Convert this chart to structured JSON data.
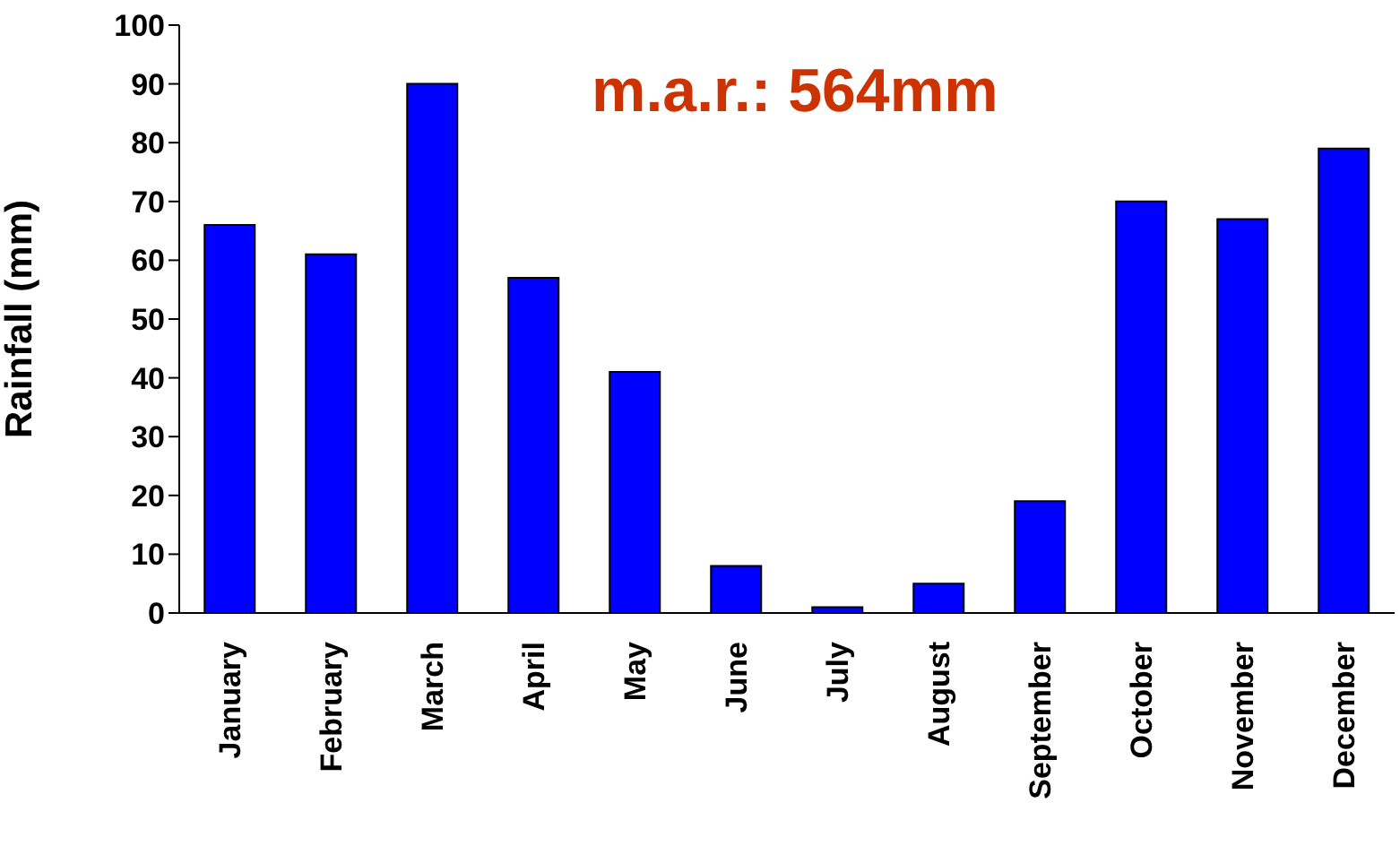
{
  "chart_data": {
    "type": "bar",
    "ylabel": "Rainfall (mm)",
    "categories": [
      "January",
      "February",
      "March",
      "April",
      "May",
      "June",
      "July",
      "August",
      "September",
      "October",
      "November",
      "December"
    ],
    "values": [
      66,
      61,
      90,
      57,
      41,
      8,
      1,
      5,
      19,
      70,
      67,
      79
    ],
    "color": "#0000ff",
    "ylim": [
      0,
      100
    ],
    "yticks": [
      0,
      10,
      20,
      30,
      40,
      50,
      60,
      70,
      80,
      90,
      100
    ],
    "grid": false,
    "legend": false,
    "annotations": [
      "m.a.r.: 564mm"
    ]
  }
}
